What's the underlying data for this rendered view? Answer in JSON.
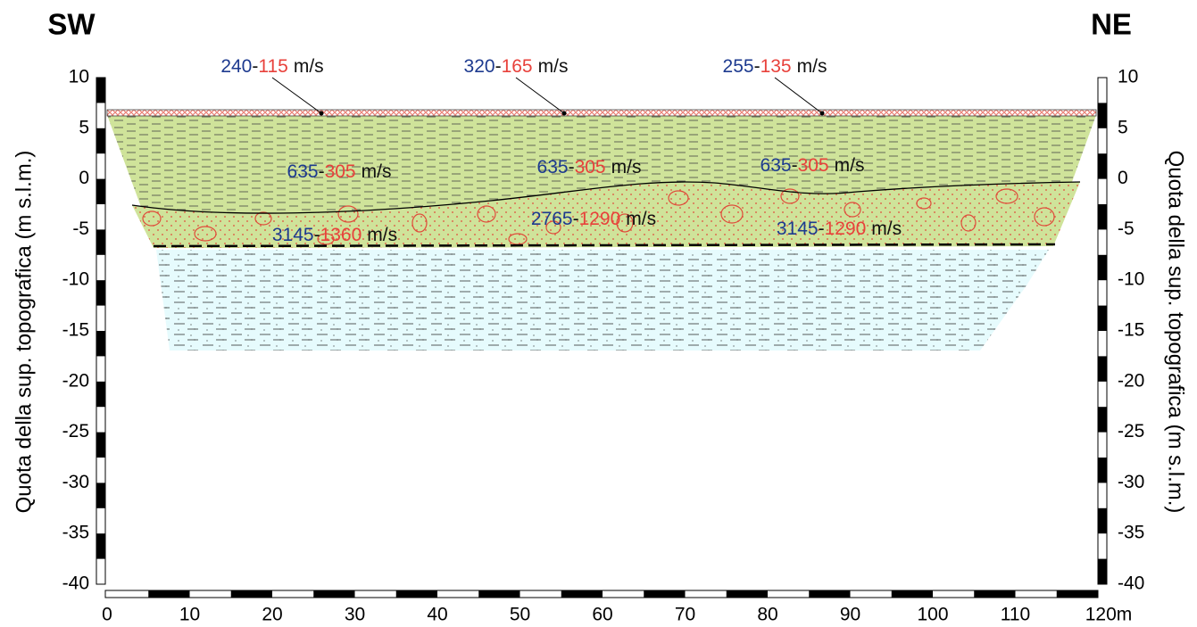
{
  "header": {
    "left": "SW",
    "right": "NE"
  },
  "y_axis": {
    "label": "Quota della sup. topografica (m s.l.m.)",
    "ticks": [
      "10",
      "5",
      "0",
      "-5",
      "-10",
      "-15",
      "-20",
      "-25",
      "-30",
      "-35",
      "-40"
    ]
  },
  "x_axis": {
    "ticks": [
      "0",
      "10",
      "20",
      "30",
      "40",
      "50",
      "60",
      "70",
      "80",
      "90",
      "100",
      "110",
      "120m"
    ]
  },
  "separator": "-",
  "velocity_unit": "m/s",
  "velocity_labels": [
    {
      "vp": "240",
      "vs": "115"
    },
    {
      "vp": "320",
      "vs": "165"
    },
    {
      "vp": "255",
      "vs": "135"
    },
    {
      "vp": "635",
      "vs": "305"
    },
    {
      "vp": "635",
      "vs": "305"
    },
    {
      "vp": "635",
      "vs": "305"
    },
    {
      "vp": "3145",
      "vs": "1360"
    },
    {
      "vp": "2765",
      "vs": "1290"
    },
    {
      "vp": "3145",
      "vs": "1290"
    }
  ]
}
